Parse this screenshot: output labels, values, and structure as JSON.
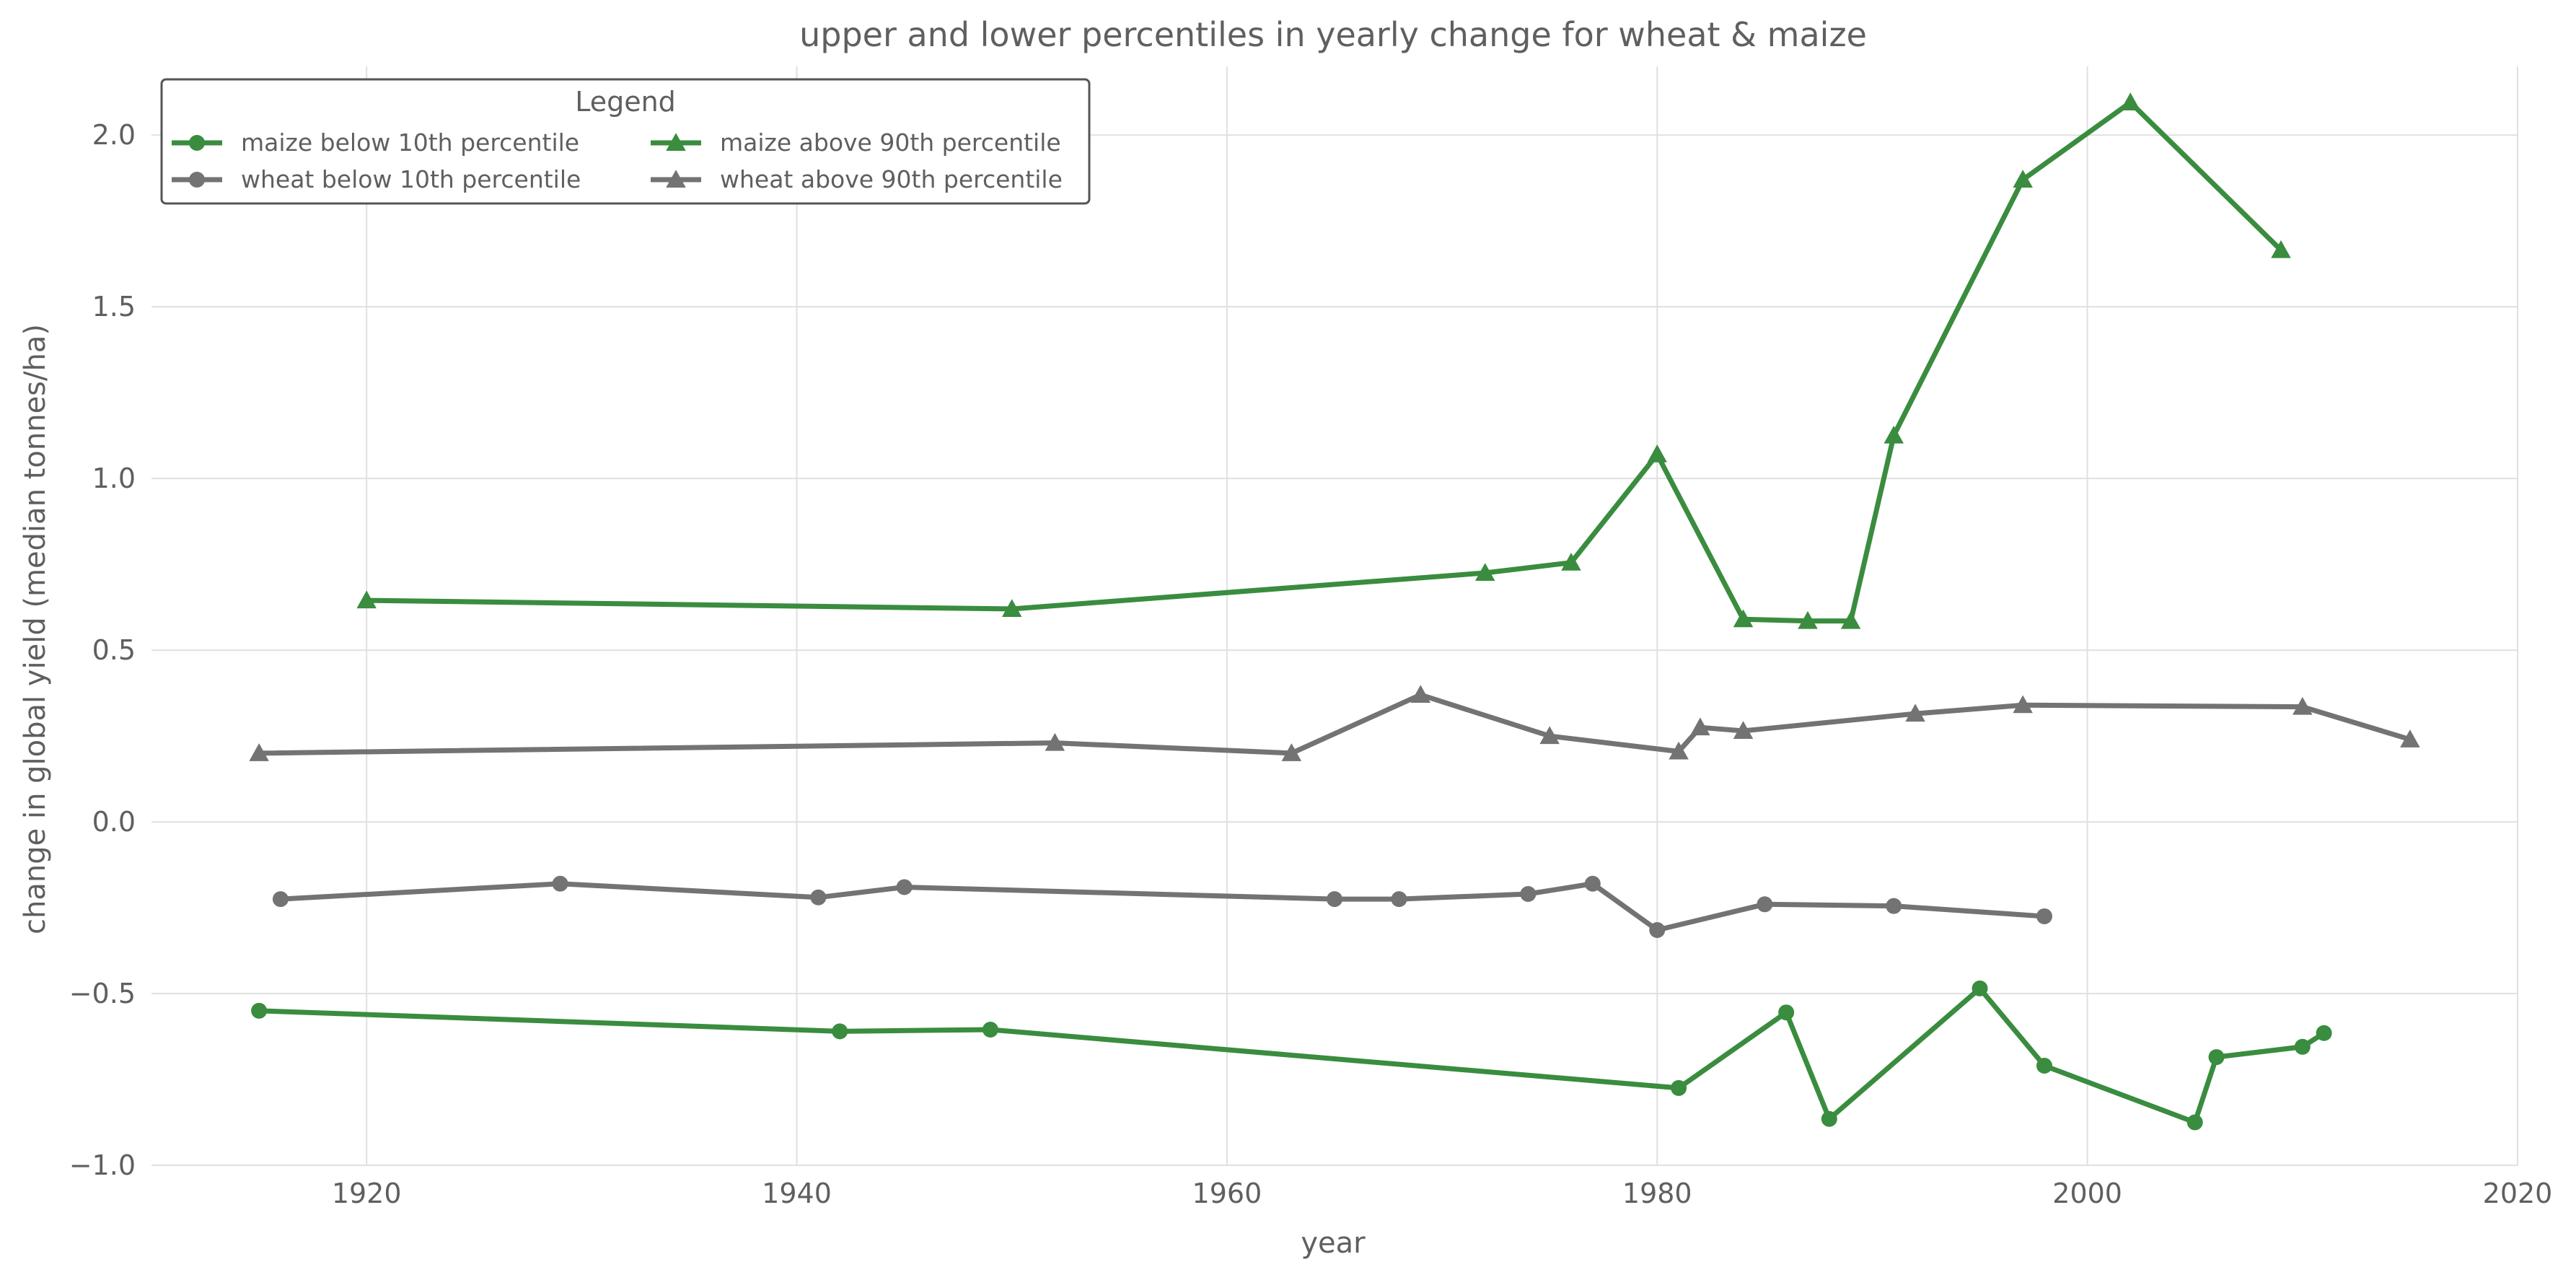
{
  "chart_data": {
    "type": "line",
    "title": "upper and lower percentiles in yearly change for wheat & maize",
    "xlabel": "year",
    "ylabel": "change in global yield (median tonnes/ha)",
    "xlim": [
      1910,
      2020
    ],
    "ylim": [
      -1.0,
      2.2
    ],
    "xticks": [
      1920,
      1940,
      1960,
      1980,
      2000,
      2020
    ],
    "xtick_labels": [
      "1920",
      "1940",
      "1960",
      "1980",
      "2000",
      "2020"
    ],
    "yticks": [
      -1.0,
      -0.5,
      0.0,
      0.5,
      1.0,
      1.5,
      2.0
    ],
    "ytick_labels": [
      "−1.0",
      "−0.5",
      "0.0",
      "0.5",
      "1.0",
      "1.5",
      "2.0"
    ],
    "grid": true,
    "legend": {
      "title": "Legend",
      "placement": "top-left",
      "columns": 2
    },
    "series": [
      {
        "name": "maize below 10th percentile",
        "color": "#3a8c3f",
        "marker": "circle",
        "x": [
          1915,
          1942,
          1949,
          1981,
          1986,
          1988,
          1995,
          1998,
          2005,
          2006,
          2010,
          2011
        ],
        "y": [
          -0.55,
          -0.61,
          -0.605,
          -0.775,
          -0.555,
          -0.865,
          -0.485,
          -0.71,
          -0.875,
          -0.685,
          -0.655,
          -0.615
        ]
      },
      {
        "name": "wheat below 10th percentile",
        "color": "#737373",
        "marker": "circle",
        "x": [
          1916,
          1929,
          1941,
          1945,
          1965,
          1968,
          1974,
          1977,
          1980,
          1985,
          1991,
          1998
        ],
        "y": [
          -0.225,
          -0.18,
          -0.22,
          -0.19,
          -0.225,
          -0.225,
          -0.21,
          -0.18,
          -0.315,
          -0.24,
          -0.245,
          -0.275
        ]
      },
      {
        "name": "maize above 90th percentile",
        "color": "#3a8c3f",
        "marker": "triangle",
        "x": [
          1920,
          1950,
          1972,
          1976,
          1980,
          1984,
          1987,
          1989,
          1991,
          1997,
          2002,
          2009
        ],
        "y": [
          0.645,
          0.62,
          0.725,
          0.755,
          1.07,
          0.59,
          0.585,
          0.585,
          1.125,
          1.87,
          2.095,
          1.665
        ]
      },
      {
        "name": "wheat above 90th percentile",
        "color": "#737373",
        "marker": "triangle",
        "x": [
          1915,
          1952,
          1963,
          1969,
          1975,
          1981,
          1982,
          1984,
          1992,
          1997,
          2010,
          2015
        ],
        "y": [
          0.2,
          0.23,
          0.2,
          0.37,
          0.25,
          0.205,
          0.275,
          0.265,
          0.315,
          0.34,
          0.335,
          0.24
        ]
      }
    ]
  }
}
